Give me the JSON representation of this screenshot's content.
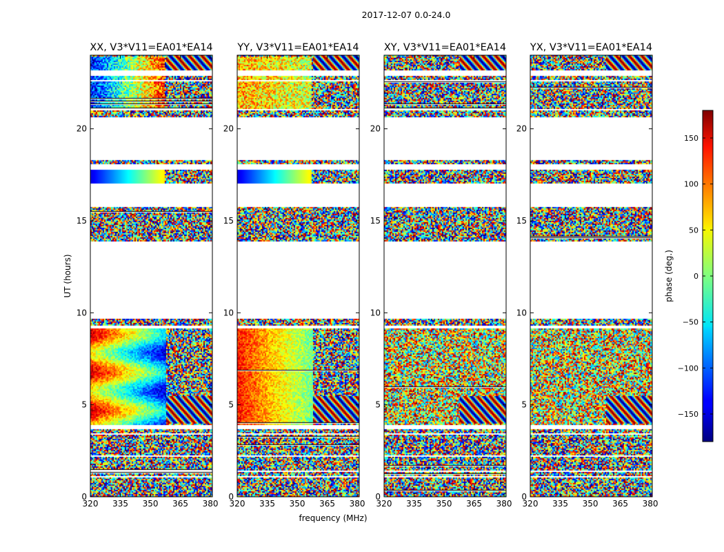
{
  "figure": {
    "suptitle": "2017-12-07 0.0-24.0",
    "ylabel": "UT (hours)",
    "xlabel": "frequency (MHz)"
  },
  "chart_data": {
    "type": "heatmap",
    "x_range": [
      320,
      381
    ],
    "y_range": [
      0,
      24
    ],
    "x_ticks": [
      320,
      335,
      350,
      365,
      380
    ],
    "y_ticks": [
      0,
      5,
      10,
      15,
      20
    ],
    "colormap": "jet",
    "panels": [
      {
        "title": "XX, V3*V11=EA01*EA14"
      },
      {
        "title": "YY, V3*V11=EA01*EA14"
      },
      {
        "title": "XY, V3*V11=EA01*EA14"
      },
      {
        "title": "YX, V3*V11=EA01*EA14"
      }
    ],
    "data_bands_hours": [
      [
        0.0,
        1.1
      ],
      [
        1.2,
        1.4
      ],
      [
        1.5,
        2.2
      ],
      [
        2.3,
        3.4
      ],
      [
        3.5,
        3.7
      ],
      [
        3.9,
        9.2
      ],
      [
        9.3,
        9.7
      ],
      [
        13.9,
        15.8
      ],
      [
        17.1,
        17.8
      ],
      [
        18.1,
        18.3
      ],
      [
        20.7,
        21.0
      ],
      [
        21.1,
        22.6
      ],
      [
        22.7,
        22.9
      ],
      [
        23.2,
        24.0
      ]
    ],
    "colorbar": {
      "label": "phase (deg.)",
      "range": [
        -180,
        180
      ],
      "ticks": [
        -150,
        -100,
        -50,
        0,
        50,
        100,
        150
      ]
    }
  }
}
